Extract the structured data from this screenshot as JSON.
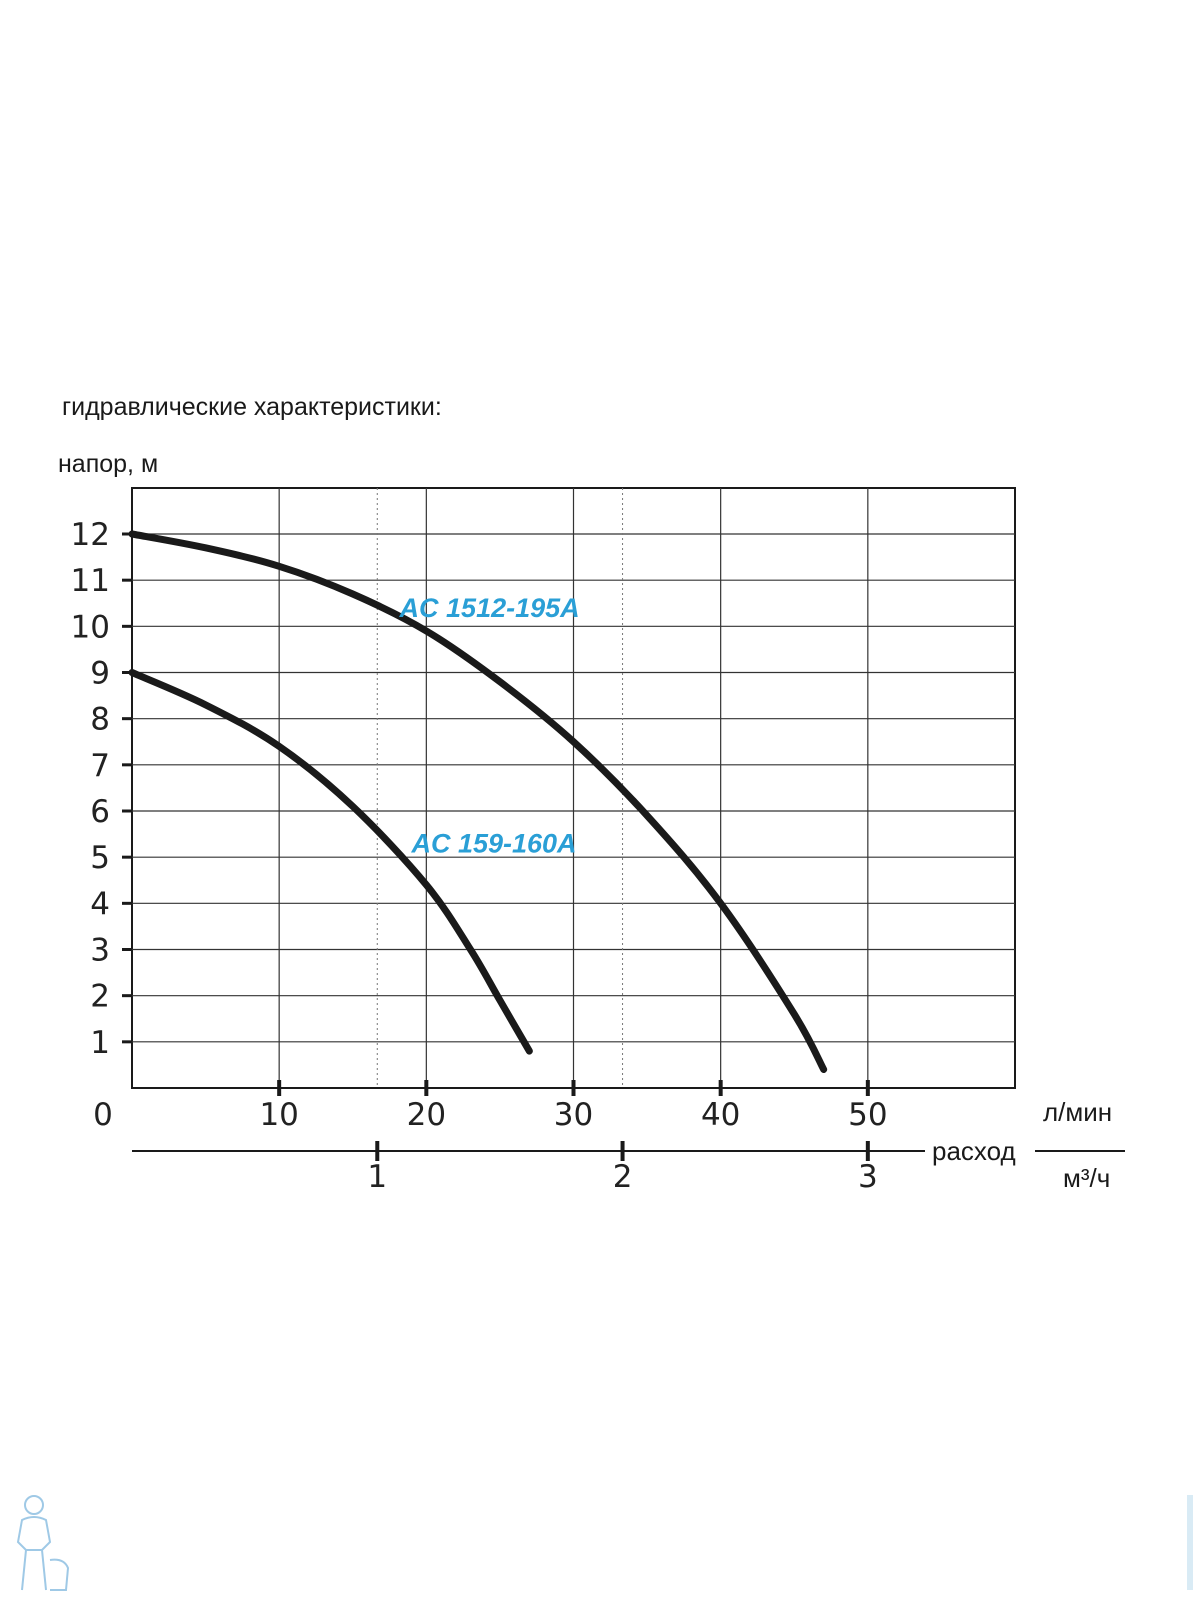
{
  "chart_data": {
    "type": "line",
    "title": "гидравлические характеристики:",
    "ylabel": "напор, м",
    "xlabel": "расход",
    "x_unit_primary": "л/мин",
    "x_unit_secondary": "м³/ч",
    "xlim": [
      0,
      60
    ],
    "ylim": [
      0,
      12
    ],
    "x_ticks": [
      0,
      10,
      20,
      30,
      40,
      50
    ],
    "x_tick_labels": [
      "0",
      "10",
      "20",
      "30",
      "40",
      "50"
    ],
    "y_ticks": [
      1,
      2,
      3,
      4,
      5,
      6,
      7,
      8,
      9,
      10,
      11,
      12
    ],
    "y_tick_labels": [
      "1",
      "2",
      "3",
      "4",
      "5",
      "6",
      "7",
      "8",
      "9",
      "10",
      "11",
      "12"
    ],
    "secondary_axis_ticks": [
      1,
      2,
      3
    ],
    "secondary_axis_tick_labels": [
      "1",
      "2",
      "3"
    ],
    "grid": true,
    "series": [
      {
        "name": "AC 1512-195A",
        "color": "#1a1a1a",
        "label_color": "#2a9fd6",
        "x": [
          0,
          5,
          10,
          15,
          20,
          25,
          30,
          35,
          40,
          45,
          47
        ],
        "y": [
          12,
          11.7,
          11.3,
          10.7,
          9.9,
          8.8,
          7.5,
          5.9,
          4.0,
          1.6,
          0.4
        ]
      },
      {
        "name": "AC 159-160A",
        "color": "#1a1a1a",
        "label_color": "#2a9fd6",
        "x": [
          0,
          5,
          10,
          15,
          20,
          23,
          25,
          27
        ],
        "y": [
          9,
          8.3,
          7.4,
          6.1,
          4.4,
          3.0,
          1.9,
          0.8
        ]
      }
    ]
  }
}
